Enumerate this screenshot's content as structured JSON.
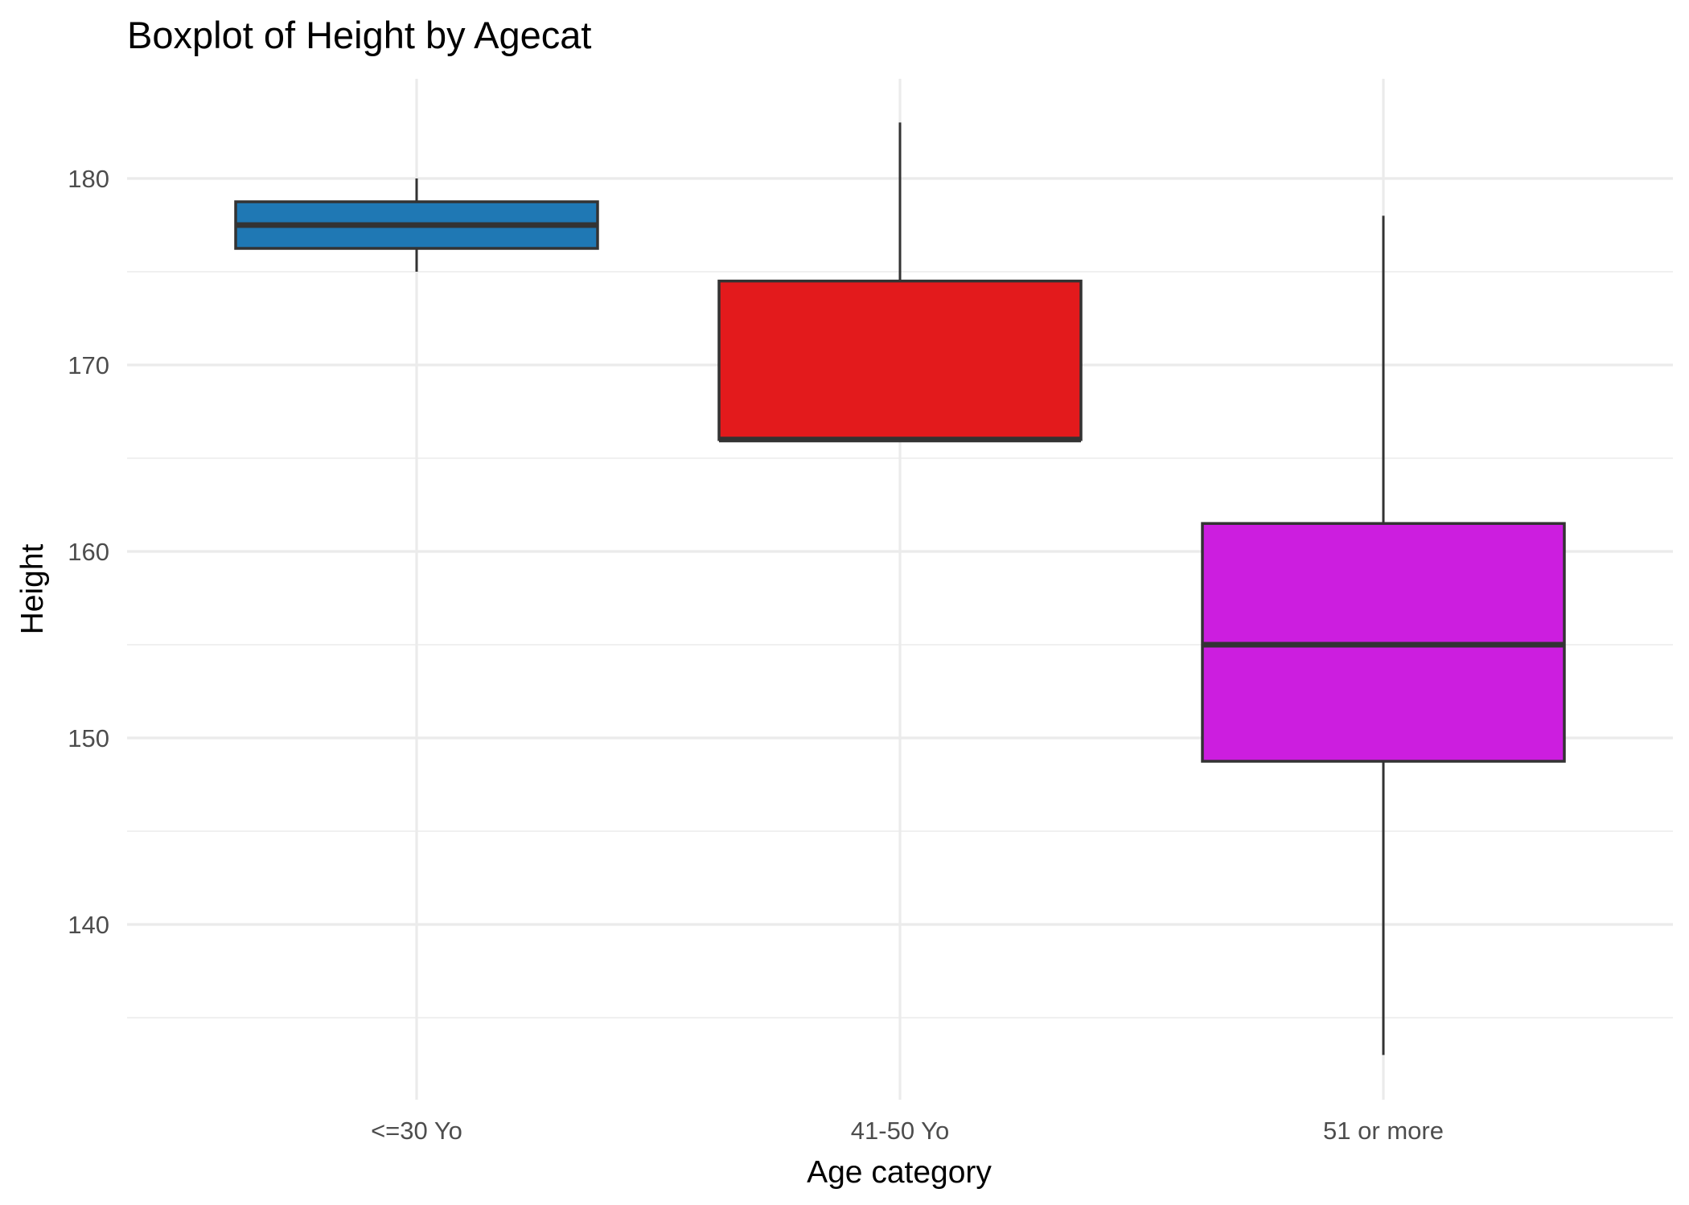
{
  "chart_data": {
    "type": "boxplot",
    "title": "Boxplot of Height by Agecat",
    "xlabel": "Age category",
    "ylabel": "Height",
    "categories": [
      "<=30 Yo",
      "41-50 Yo",
      "51 or more"
    ],
    "boxes": [
      {
        "category": "<=30 Yo",
        "whisker_low": 175,
        "q1": 176.25,
        "median": 177.5,
        "q3": 178.75,
        "whisker_high": 180,
        "color": "#1f78b4"
      },
      {
        "category": "41-50 Yo",
        "whisker_low": 166,
        "q1": 166,
        "median": 166,
        "q3": 174.5,
        "whisker_high": 183,
        "color": "#e31a1c"
      },
      {
        "category": "51 or more",
        "whisker_low": 133,
        "q1": 148.75,
        "median": 155,
        "q3": 161.5,
        "whisker_high": 178,
        "color": "#cc1edf"
      }
    ],
    "y_ticks": [
      140,
      150,
      160,
      170,
      180
    ],
    "y_minor_ticks": [
      135,
      145,
      155,
      165,
      175
    ],
    "ylim": [
      130.5,
      185.5
    ],
    "grid": true,
    "legend": "none"
  }
}
